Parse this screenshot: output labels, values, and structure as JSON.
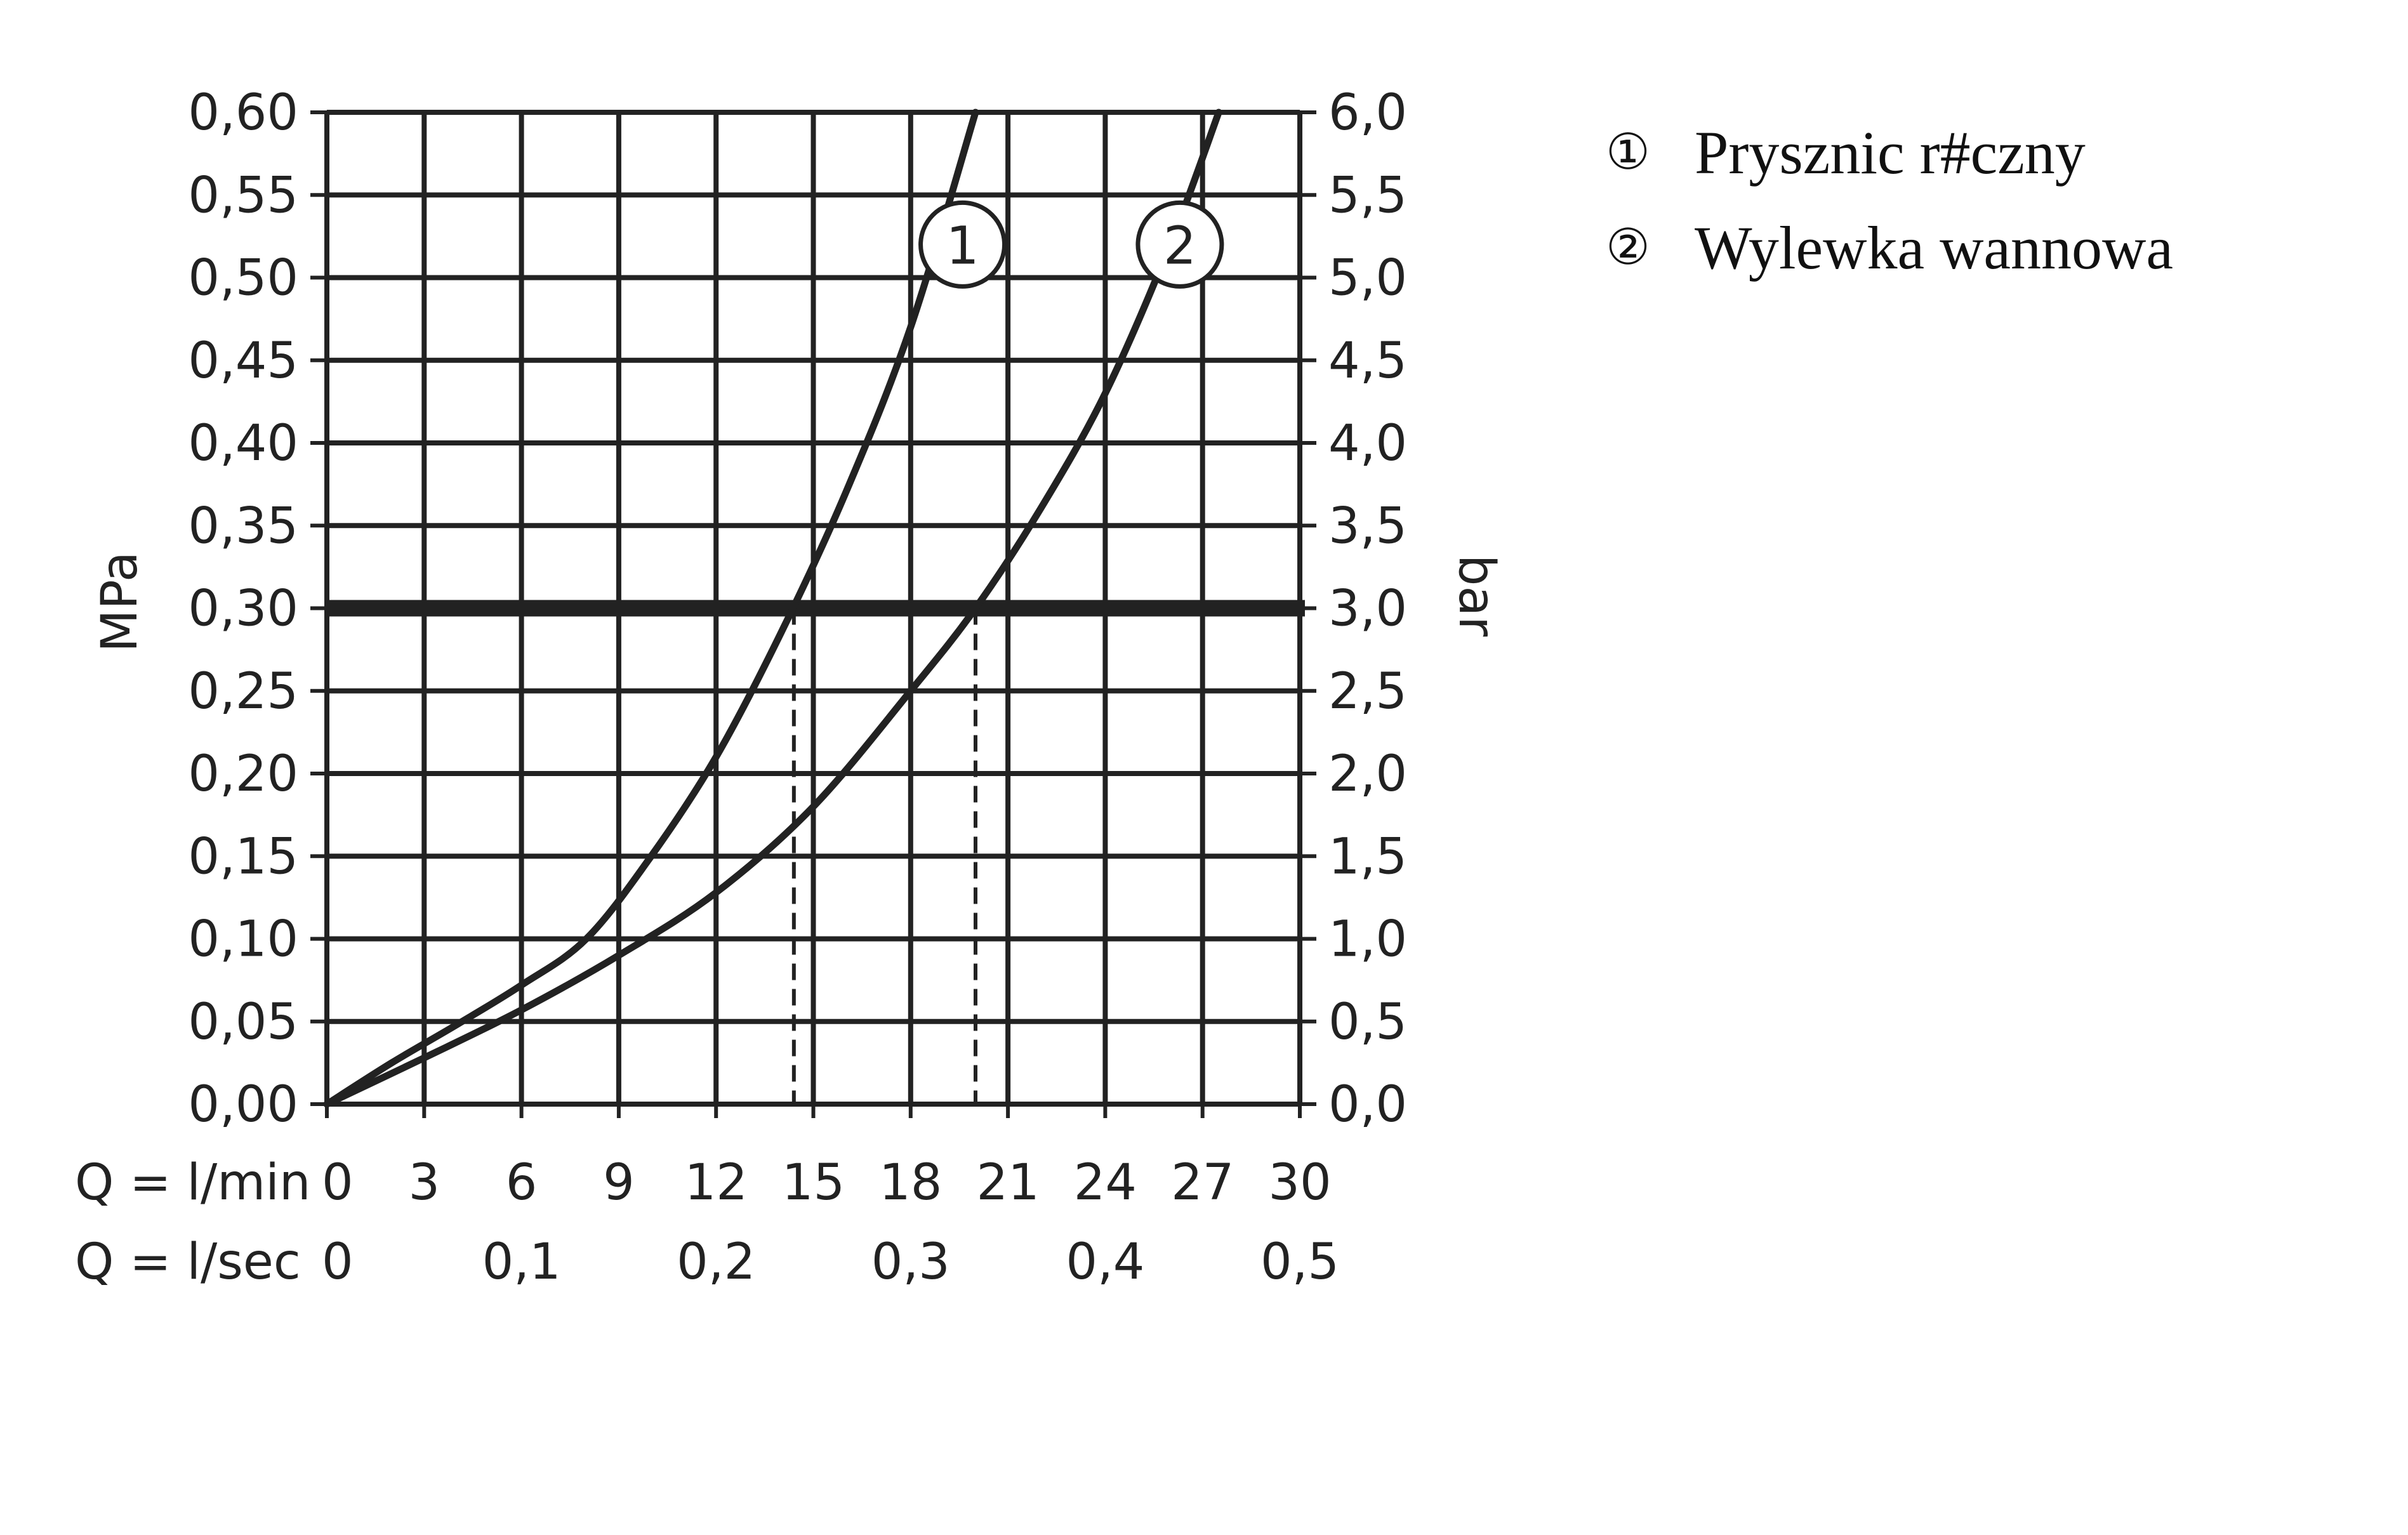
{
  "chart_data": {
    "type": "line",
    "x_rows": [
      {
        "label": "Q = l/min",
        "ticks": [
          "0",
          "3",
          "6",
          "9",
          "12",
          "15",
          "18",
          "21",
          "24",
          "27",
          "30"
        ],
        "values": [
          0,
          3,
          6,
          9,
          12,
          15,
          18,
          21,
          24,
          27,
          30
        ]
      },
      {
        "label": "Q = l/sec",
        "ticks": [
          "0",
          "0,1",
          "0,2",
          "0,3",
          "0,4",
          "0,5"
        ],
        "values": [
          0,
          6,
          12,
          18,
          24,
          30
        ]
      }
    ],
    "xlim": [
      0,
      30
    ],
    "y_left": {
      "label": "MPa",
      "ticks": [
        "0,00",
        "0,05",
        "0,10",
        "0,15",
        "0,20",
        "0,25",
        "0,30",
        "0,35",
        "0,40",
        "0,45",
        "0,50",
        "0,55",
        "0,60"
      ],
      "values": [
        0,
        0.05,
        0.1,
        0.15,
        0.2,
        0.25,
        0.3,
        0.35,
        0.4,
        0.45,
        0.5,
        0.55,
        0.6
      ]
    },
    "y_right": {
      "label": "bar",
      "ticks": [
        "0,0",
        "0,5",
        "1,0",
        "1,5",
        "2,0",
        "2,5",
        "3,0",
        "3,5",
        "4,0",
        "4,5",
        "5,0",
        "5,5",
        "6,0"
      ],
      "values": [
        0,
        0.05,
        0.1,
        0.15,
        0.2,
        0.25,
        0.3,
        0.35,
        0.4,
        0.45,
        0.5,
        0.55,
        0.6
      ]
    },
    "ylim": [
      0,
      0.6
    ],
    "grid": true,
    "reference_line": {
      "y": 0.3
    },
    "operating_points": [
      {
        "series": "1",
        "x": 14.4,
        "y": 0.3
      },
      {
        "series": "2",
        "x": 20.0,
        "y": 0.3
      }
    ],
    "series": [
      {
        "marker": "1",
        "x": [
          0,
          2,
          4,
          6,
          8,
          10,
          12,
          14,
          16,
          18,
          20
        ],
        "y": [
          0,
          0.025,
          0.048,
          0.072,
          0.1,
          0.15,
          0.21,
          0.285,
          0.37,
          0.47,
          0.6
        ]
      },
      {
        "marker": "2",
        "x": [
          0,
          3,
          6,
          9,
          12,
          15,
          18,
          20,
          22,
          24,
          26,
          27.5
        ],
        "y": [
          0,
          0.028,
          0.057,
          0.09,
          0.128,
          0.18,
          0.25,
          0.3,
          0.36,
          0.43,
          0.52,
          0.6
        ]
      }
    ],
    "label_positions": {
      "1": {
        "x": 19.6,
        "y": 0.52
      },
      "2": {
        "x": 26.3,
        "y": 0.52
      }
    }
  },
  "legend": [
    {
      "num": "①",
      "text": "Prysznic r#czny"
    },
    {
      "num": "②",
      "text": "Wylewka wannowa"
    }
  ],
  "colors": {
    "ink": "#222222",
    "background": "#ffffff"
  }
}
